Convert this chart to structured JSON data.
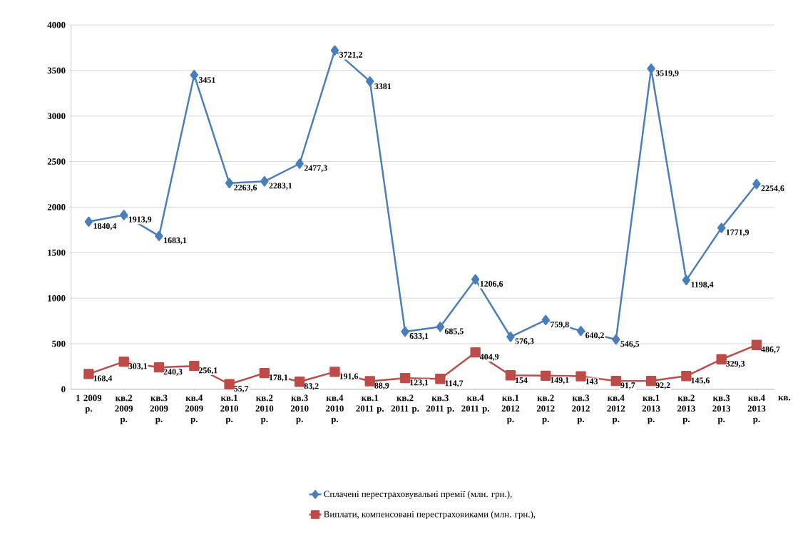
{
  "chart_data": {
    "type": "line",
    "categories": [
      "1 2009 р.",
      "кв.2 2009 р.",
      "кв.3 2009 р.",
      "кв.4 2009 р.",
      "кв.1 2010 р.",
      "кв.2 2010 р.",
      "кв.3 2010 р.",
      "кв.4 2010 р.",
      "кв.1 2011 р.",
      "кв.2 2011 р.",
      "кв.3 2011 р.",
      "кв.4 2011 р.",
      "кв.1 2012 р.",
      "кв.2 2012 р.",
      "кв.3 2012 р.",
      "кв.4 2012 р.",
      "кв.1 2013 р.",
      "кв.2 2013 р.",
      "кв.3 2013 р.",
      "кв.4 2013 р."
    ],
    "series": [
      {
        "name": "Сплачені перестраховувальні премії (млн. грн.),",
        "color": "#4a7ebb",
        "marker": "diamond",
        "values": [
          1840.4,
          1913.9,
          1683.1,
          3451,
          2263.6,
          2283.1,
          2477.3,
          3721.2,
          3381,
          633.1,
          685.5,
          1206.6,
          576.3,
          759.8,
          640.2,
          546.5,
          3519.9,
          1198.4,
          1771.9,
          2254.6
        ],
        "value_labels": [
          "1840,4",
          "1913,9",
          "1683,1",
          "3451",
          "2263,6",
          "2283,1",
          "2477,3",
          "3721,2",
          "3381",
          "633,1",
          "685,5",
          "1206,6",
          "576,3",
          "759,8",
          "640,2",
          "546,5",
          "3519,9",
          "1198,4",
          "1771,9",
          "2254,6"
        ]
      },
      {
        "name": "Виплати, компенсовані перестраховиками (млн. грн.),",
        "color": "#be4b48",
        "marker": "square",
        "values": [
          168.4,
          303.1,
          240.3,
          256.1,
          55.7,
          178.1,
          83.2,
          191.6,
          88.9,
          123.1,
          114.7,
          404.9,
          154,
          149.1,
          143,
          91.7,
          92.2,
          145.6,
          329.3,
          486.7
        ],
        "value_labels": [
          "168,4",
          "303,1",
          "240,3",
          "256,1",
          "55,7",
          "178,1",
          "83,2",
          "191,6",
          "88,9",
          "123,1",
          "114,7",
          "404,9",
          "154",
          "149,1",
          "143",
          "91,7",
          "92,2",
          "145,6",
          "329,3",
          "486,7"
        ]
      }
    ],
    "ylim": [
      0,
      4000
    ],
    "yticks": [
      0,
      500,
      1000,
      1500,
      2000,
      2500,
      3000,
      3500,
      4000
    ],
    "grid": "y",
    "legend": "bottom",
    "line_style": "solid",
    "annotations": [
      "кв."
    ]
  }
}
